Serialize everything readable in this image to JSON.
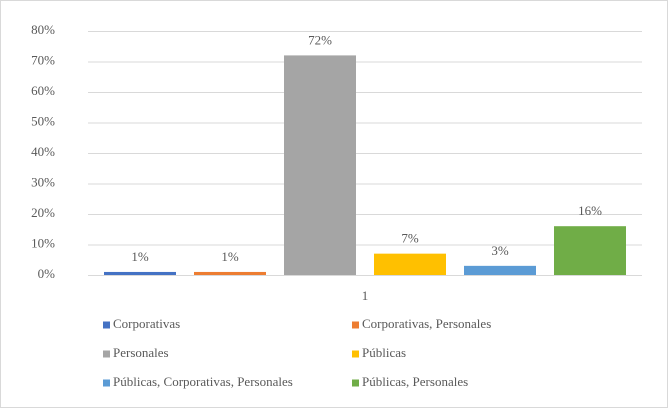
{
  "chart_data": {
    "type": "bar",
    "categories": [
      "1"
    ],
    "series": [
      {
        "name": "Corporativas",
        "color": "#4472c4",
        "values": [
          1
        ],
        "value_labels": [
          "1%"
        ]
      },
      {
        "name": "Corporativas, Personales",
        "color": "#ed7d31",
        "values": [
          1
        ],
        "value_labels": [
          "1%"
        ]
      },
      {
        "name": "Personales",
        "color": "#a5a5a5",
        "values": [
          72
        ],
        "value_labels": [
          "72%"
        ]
      },
      {
        "name": "Públicas",
        "color": "#ffc000",
        "values": [
          7
        ],
        "value_labels": [
          "7%"
        ]
      },
      {
        "name": "Públicas, Corporativas, Personales",
        "color": "#5b9bd5",
        "values": [
          3
        ],
        "value_labels": [
          "3%"
        ]
      },
      {
        "name": "Públicas, Personales",
        "color": "#70ad47",
        "values": [
          16
        ],
        "value_labels": [
          "16%"
        ]
      }
    ],
    "ylim": [
      0,
      80
    ],
    "yticks": [
      {
        "value": 0,
        "label": "0%"
      },
      {
        "value": 10,
        "label": "10%"
      },
      {
        "value": 20,
        "label": "20%"
      },
      {
        "value": 30,
        "label": "30%"
      },
      {
        "value": 40,
        "label": "40%"
      },
      {
        "value": 50,
        "label": "50%"
      },
      {
        "value": 60,
        "label": "60%"
      },
      {
        "value": 70,
        "label": "70%"
      },
      {
        "value": 80,
        "label": "80%"
      }
    ],
    "grid": true,
    "legend": "bottom"
  }
}
